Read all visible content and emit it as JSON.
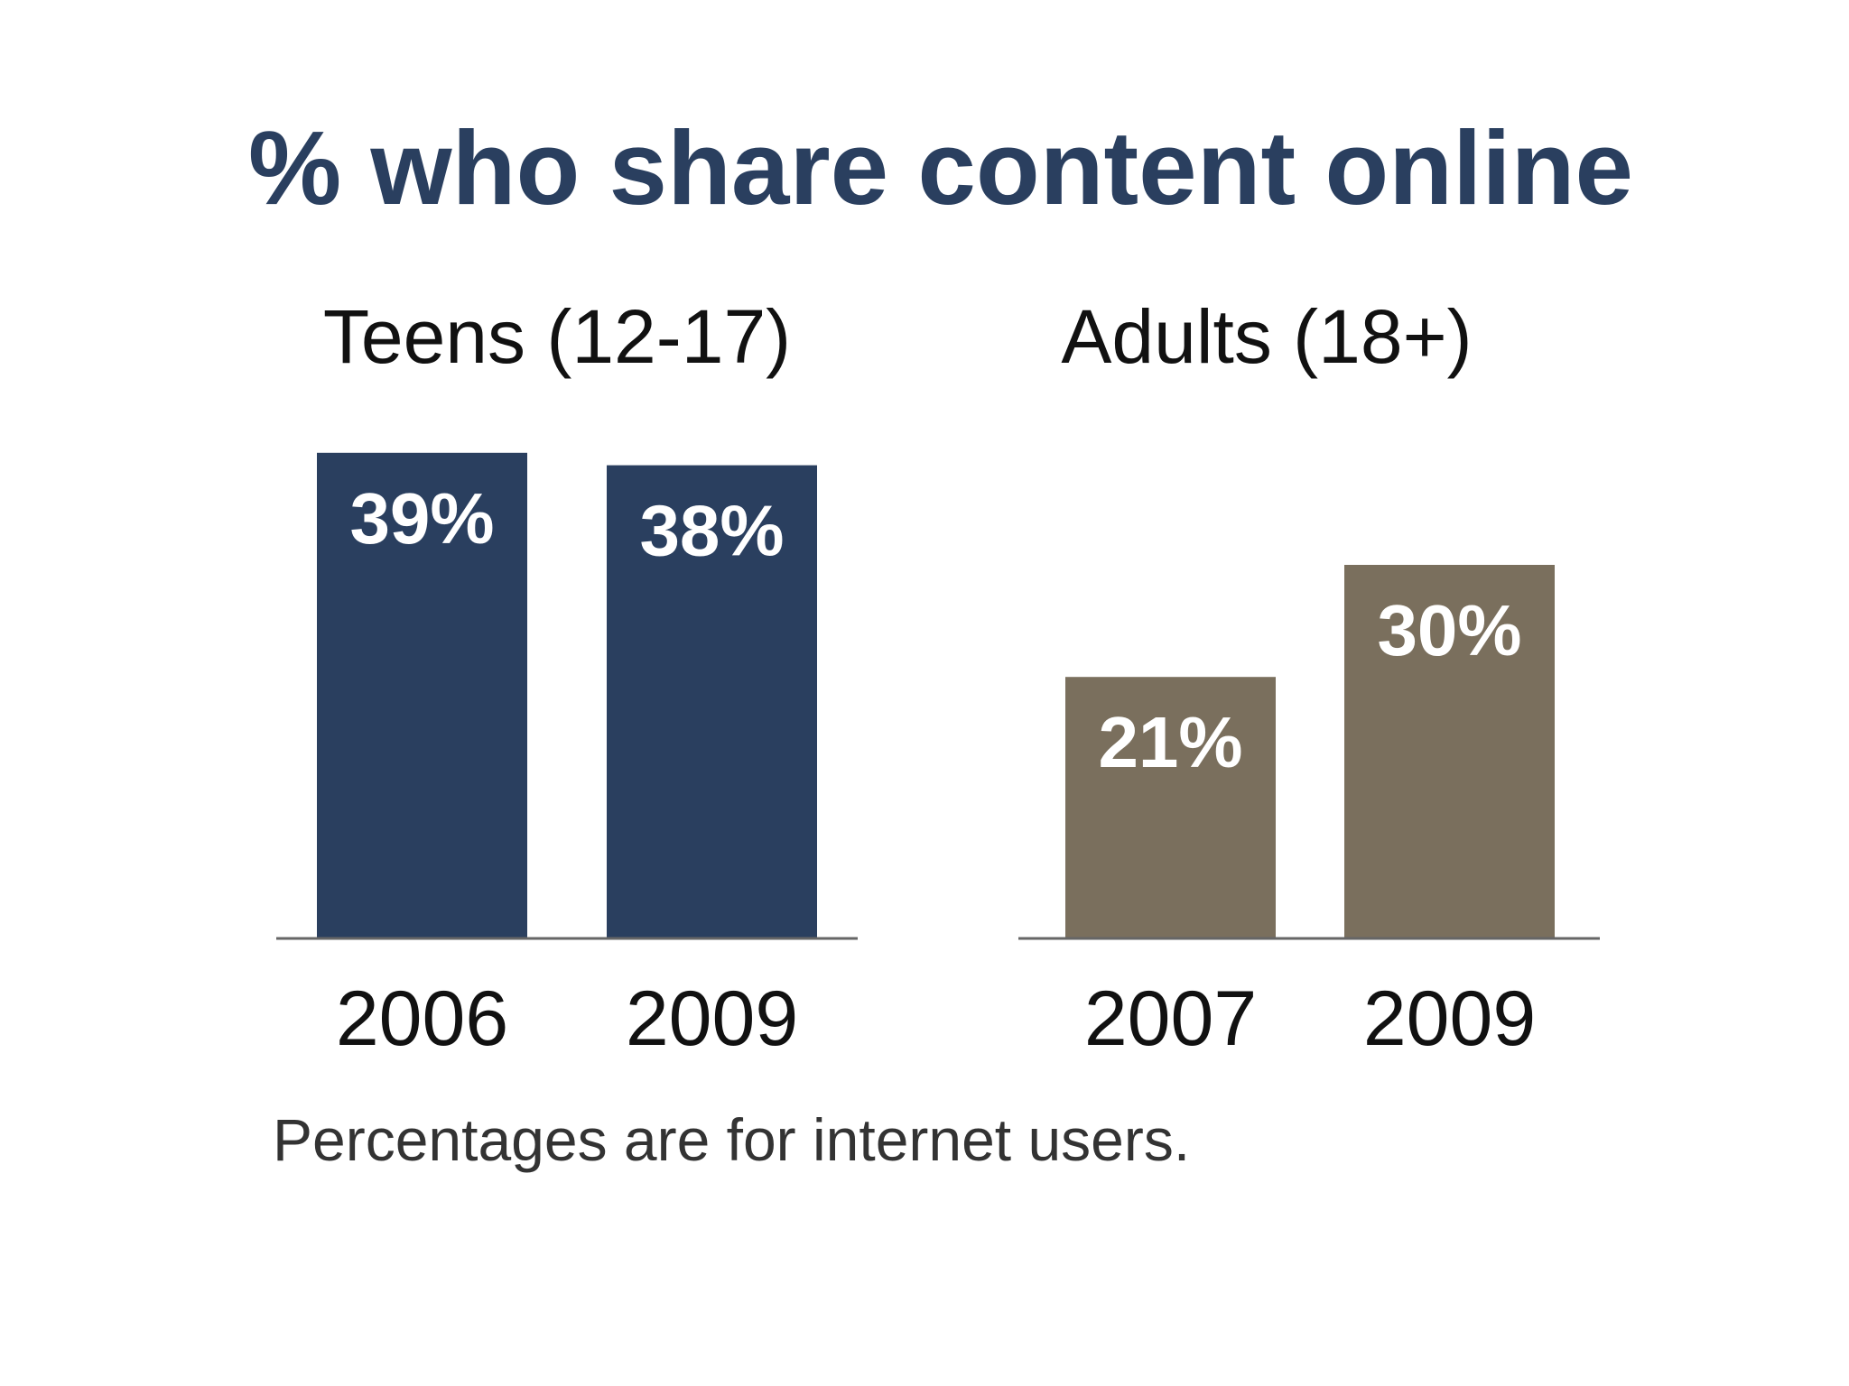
{
  "chart_data": {
    "type": "bar",
    "title": "% who share content online",
    "note": "Percentages are for internet users.",
    "ylim": [
      0,
      40
    ],
    "grid": false,
    "panels": [
      {
        "title": "Teens (12-17)",
        "categories": [
          "2006",
          "2009"
        ],
        "values": [
          39,
          38
        ],
        "data_labels": [
          "39%",
          "38%"
        ],
        "color": "#2a3f5f"
      },
      {
        "title": "Adults (18+)",
        "categories": [
          "2007",
          "2009"
        ],
        "values": [
          21,
          30
        ],
        "data_labels": [
          "21%",
          "30%"
        ],
        "color": "#7a6f5d"
      }
    ]
  },
  "colors": {
    "title": "#2a3f5f",
    "text": "#111111",
    "note": "#333333",
    "axis": "#666666",
    "label_on_bar": "#ffffff"
  }
}
